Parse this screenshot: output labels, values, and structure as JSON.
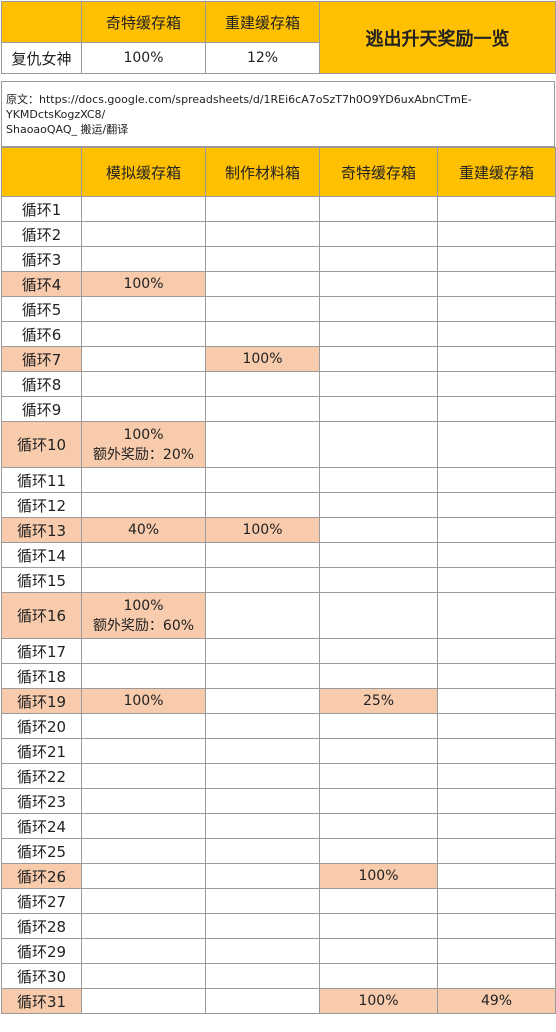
{
  "summary": {
    "header_1": "奇特缓存箱",
    "header_2": "重建缓存箱",
    "title": "逃出升天奖励一览",
    "row_label": "复仇女神",
    "value_1": "100%",
    "value_2": "12%"
  },
  "source": {
    "line1": "原文：https://docs.google.com/spreadsheets/d/1REi6cA7oSzT7h0O9YD6uxAbnCTmE-",
    "line2": "YKMDctsKogzXC8/",
    "line3": "ShaoaoQAQ_ 搬运/翻译"
  },
  "table": {
    "headers": [
      "",
      "模拟缓存箱",
      "制作材料箱",
      "奇特缓存箱",
      "重建缓存箱"
    ],
    "rows": [
      {
        "label": "循环1",
        "cells": [
          "",
          "",
          "",
          ""
        ]
      },
      {
        "label": "循环2",
        "cells": [
          "",
          "",
          "",
          ""
        ]
      },
      {
        "label": "循环3",
        "cells": [
          "",
          "",
          "",
          ""
        ]
      },
      {
        "label": "循环4",
        "cells": [
          "100%",
          "",
          "",
          ""
        ]
      },
      {
        "label": "循环5",
        "cells": [
          "",
          "",
          "",
          ""
        ]
      },
      {
        "label": "循环6",
        "cells": [
          "",
          "",
          "",
          ""
        ]
      },
      {
        "label": "循环7",
        "cells": [
          "",
          "100%",
          "",
          ""
        ]
      },
      {
        "label": "循环8",
        "cells": [
          "",
          "",
          "",
          ""
        ]
      },
      {
        "label": "循环9",
        "cells": [
          "",
          "",
          "",
          ""
        ]
      },
      {
        "label": "循环10",
        "cells": [
          "100%\n额外奖励：20%",
          "",
          "",
          ""
        ]
      },
      {
        "label": "循环11",
        "cells": [
          "",
          "",
          "",
          ""
        ]
      },
      {
        "label": "循环12",
        "cells": [
          "",
          "",
          "",
          ""
        ]
      },
      {
        "label": "循环13",
        "cells": [
          "40%",
          "100%",
          "",
          ""
        ]
      },
      {
        "label": "循环14",
        "cells": [
          "",
          "",
          "",
          ""
        ]
      },
      {
        "label": "循环15",
        "cells": [
          "",
          "",
          "",
          ""
        ]
      },
      {
        "label": "循环16",
        "cells": [
          "100%\n额外奖励：60%",
          "",
          "",
          ""
        ]
      },
      {
        "label": "循环17",
        "cells": [
          "",
          "",
          "",
          ""
        ]
      },
      {
        "label": "循环18",
        "cells": [
          "",
          "",
          "",
          ""
        ]
      },
      {
        "label": "循环19",
        "cells": [
          "100%",
          "",
          "25%",
          ""
        ]
      },
      {
        "label": "循环20",
        "cells": [
          "",
          "",
          "",
          ""
        ]
      },
      {
        "label": "循环21",
        "cells": [
          "",
          "",
          "",
          ""
        ]
      },
      {
        "label": "循环22",
        "cells": [
          "",
          "",
          "",
          ""
        ]
      },
      {
        "label": "循环23",
        "cells": [
          "",
          "",
          "",
          ""
        ]
      },
      {
        "label": "循环24",
        "cells": [
          "",
          "",
          "",
          ""
        ]
      },
      {
        "label": "循环25",
        "cells": [
          "",
          "",
          "",
          ""
        ]
      },
      {
        "label": "循环26",
        "cells": [
          "",
          "",
          "100%",
          ""
        ]
      },
      {
        "label": "循环27",
        "cells": [
          "",
          "",
          "",
          ""
        ]
      },
      {
        "label": "循环28",
        "cells": [
          "",
          "",
          "",
          ""
        ]
      },
      {
        "label": "循环29",
        "cells": [
          "",
          "",
          "",
          ""
        ]
      },
      {
        "label": "循环30",
        "cells": [
          "",
          "",
          "",
          ""
        ]
      },
      {
        "label": "循环31",
        "cells": [
          "",
          "",
          "100%",
          "49%"
        ]
      }
    ]
  },
  "colors": {
    "header": "#FFC000",
    "highlight": "#F8CBAD",
    "border": "#9a9a9a"
  }
}
